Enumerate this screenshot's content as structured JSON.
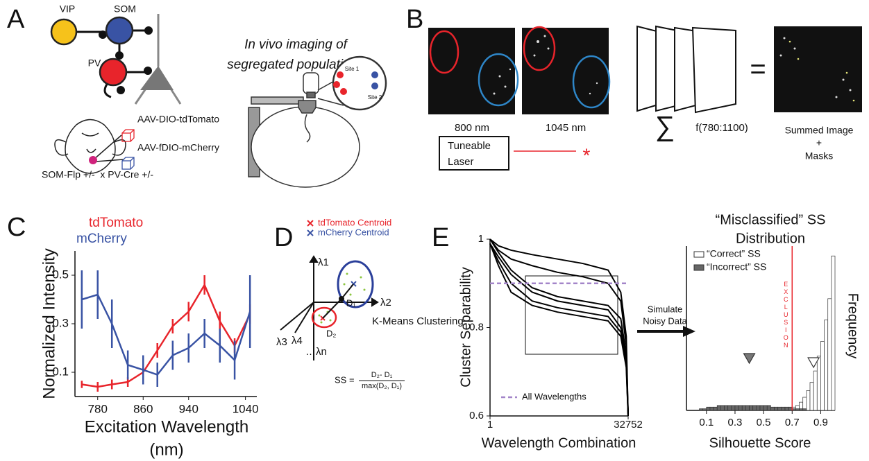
{
  "panel_labels": [
    "A",
    "B",
    "C",
    "D",
    "E"
  ],
  "panel_a": {
    "cells": [
      "VIP",
      "SOM",
      "PV"
    ],
    "viruses": [
      "AAV-DIO-tdTomato",
      "AAV-fDIO-mCherry"
    ],
    "cross": "SOM-Flp +/-  x PV-Cre +/-",
    "imaging_title": [
      "In vivo imaging of",
      "segregated populations"
    ],
    "sites": [
      "Site 1",
      "Site 2"
    ]
  },
  "panel_b": {
    "wavelengths": [
      "800 nm",
      "1045 nm"
    ],
    "laser": [
      "Tuneable",
      "Laser"
    ],
    "laser_mark": "*",
    "sum_symbol": "∑",
    "sum_range": "f(780:1100)",
    "equals": "=",
    "result": [
      "Summed Image",
      "+",
      "Masks"
    ]
  },
  "panel_d": {
    "legend": [
      "tdTomato Centroid",
      "mCherry Centroid"
    ],
    "axes": [
      "λ1",
      "λ2",
      "λ3",
      "λ4",
      "…λn"
    ],
    "distances": [
      "D₁",
      "D₂"
    ],
    "method": "K-Means Clustering",
    "formula": {
      "lhs": "SS =",
      "numerator": "D₂- D₁",
      "denominator": "max(D₂, D₁)"
    }
  },
  "panel_e": {
    "arrow_text": [
      "Simulate",
      "Noisy Data"
    ]
  },
  "chart_data": [
    {
      "type": "line",
      "xlabel": [
        "Excitation Wavelength",
        "(nm)"
      ],
      "ylabel": "Normalized Intensity",
      "x": [
        752,
        780,
        805,
        833,
        860,
        885,
        912,
        940,
        968,
        995,
        1021,
        1048
      ],
      "xlim": [
        740,
        1060
      ],
      "xticks": [
        780,
        860,
        940,
        1040
      ],
      "ylim": [
        0,
        0.6
      ],
      "yticks": [
        0.1,
        0.3,
        0.5
      ],
      "series": [
        {
          "name": "tdTomato",
          "color": "#e8242b",
          "values": [
            0.05,
            0.04,
            0.05,
            0.06,
            0.1,
            0.19,
            0.29,
            0.35,
            0.46,
            0.31,
            0.21,
            0.34
          ],
          "errors": [
            0.015,
            0.02,
            0.02,
            0.02,
            0.03,
            0.03,
            0.03,
            0.04,
            0.04,
            0.04,
            0.03,
            0.04
          ]
        },
        {
          "name": "mCherry",
          "color": "#3953a4",
          "values": [
            0.4,
            0.42,
            0.3,
            0.13,
            0.11,
            0.09,
            0.17,
            0.2,
            0.26,
            0.21,
            0.15,
            0.35
          ],
          "errors": [
            0.12,
            0.1,
            0.1,
            0.06,
            0.06,
            0.05,
            0.06,
            0.06,
            0.06,
            0.07,
            0.08,
            0.15
          ]
        }
      ]
    },
    {
      "type": "line",
      "xlabel": "Wavelength Combination",
      "ylabel": "Cluster Separability",
      "x": [
        1,
        2000,
        5000,
        10000,
        16000,
        22000,
        28000,
        31000,
        32300,
        32752
      ],
      "xlim": [
        1,
        32752
      ],
      "xticks": [
        1,
        32752
      ],
      "ylim": [
        0.6,
        1
      ],
      "yticks": [
        0.6,
        0.8,
        1
      ],
      "series": [
        {
          "color": "#000000",
          "values": [
            1.0,
            0.985,
            0.975,
            0.965,
            0.955,
            0.945,
            0.93,
            0.88,
            0.78,
            0.6
          ]
        },
        {
          "color": "#000000",
          "values": [
            1.0,
            0.975,
            0.955,
            0.94,
            0.925,
            0.915,
            0.9,
            0.86,
            0.76,
            0.6
          ]
        },
        {
          "color": "#000000",
          "values": [
            1.0,
            0.97,
            0.93,
            0.89,
            0.87,
            0.86,
            0.85,
            0.82,
            0.74,
            0.6
          ]
        },
        {
          "color": "#000000",
          "values": [
            0.99,
            0.96,
            0.92,
            0.88,
            0.86,
            0.85,
            0.84,
            0.8,
            0.73,
            0.6
          ]
        },
        {
          "color": "#000000",
          "values": [
            0.99,
            0.95,
            0.9,
            0.86,
            0.845,
            0.835,
            0.825,
            0.79,
            0.72,
            0.6
          ]
        },
        {
          "color": "#000000",
          "values": [
            0.99,
            0.94,
            0.88,
            0.85,
            0.835,
            0.825,
            0.815,
            0.78,
            0.71,
            0.6
          ]
        }
      ],
      "reference_line": {
        "name": "All Wavelengths",
        "value": 0.9,
        "color": "#a385c9"
      }
    },
    {
      "type": "histogram",
      "title": [
        "“Misclassified” SS",
        "Distribution"
      ],
      "xlabel": "Silhouette Score",
      "ylabel": "Frequency",
      "bins": [
        0,
        0.025,
        0.05,
        0.075,
        0.1,
        0.125,
        0.15,
        0.175,
        0.2,
        0.225,
        0.25,
        0.275,
        0.3,
        0.325,
        0.35,
        0.375,
        0.4,
        0.425,
        0.45,
        0.475,
        0.5,
        0.525,
        0.55,
        0.575,
        0.6,
        0.625,
        0.65,
        0.675,
        0.7,
        0.725,
        0.75,
        0.775,
        0.8,
        0.825,
        0.85,
        0.875,
        0.9,
        0.925,
        0.95,
        0.975,
        1.0
      ],
      "xlim": [
        -0.04,
        1
      ],
      "xticks": [
        0.1,
        0.3,
        0.5,
        0.7,
        0.9
      ],
      "ylim": [
        0,
        100
      ],
      "series": [
        {
          "name": "“Correct” SS",
          "color": "#ffffff",
          "values": [
            0,
            0,
            0,
            0,
            0,
            0,
            0,
            0,
            0,
            0,
            0,
            0,
            0,
            0,
            0,
            0,
            0,
            0,
            0,
            0,
            0,
            0,
            0,
            0,
            0,
            0,
            0,
            0,
            2,
            3,
            5,
            8,
            12,
            17,
            24,
            33,
            42,
            55,
            68,
            94
          ]
        },
        {
          "name": "“Incorrect” SS",
          "color": "#666666",
          "values": [
            0,
            0,
            1,
            1,
            2,
            2,
            2,
            3,
            3,
            3,
            3,
            3,
            3,
            3,
            3,
            3,
            3,
            3,
            3,
            3,
            3,
            3,
            2,
            2,
            2,
            2,
            2,
            2,
            1,
            1,
            1,
            1,
            0,
            0,
            0,
            0,
            0,
            0,
            0,
            0
          ]
        }
      ],
      "threshold": {
        "label": "EXCLUSION",
        "value": 0.7,
        "color": "#e8242b"
      },
      "markers": [
        {
          "x": 0.4,
          "color": "#777777"
        },
        {
          "x": 0.85,
          "color": "#ffffff"
        }
      ]
    }
  ]
}
